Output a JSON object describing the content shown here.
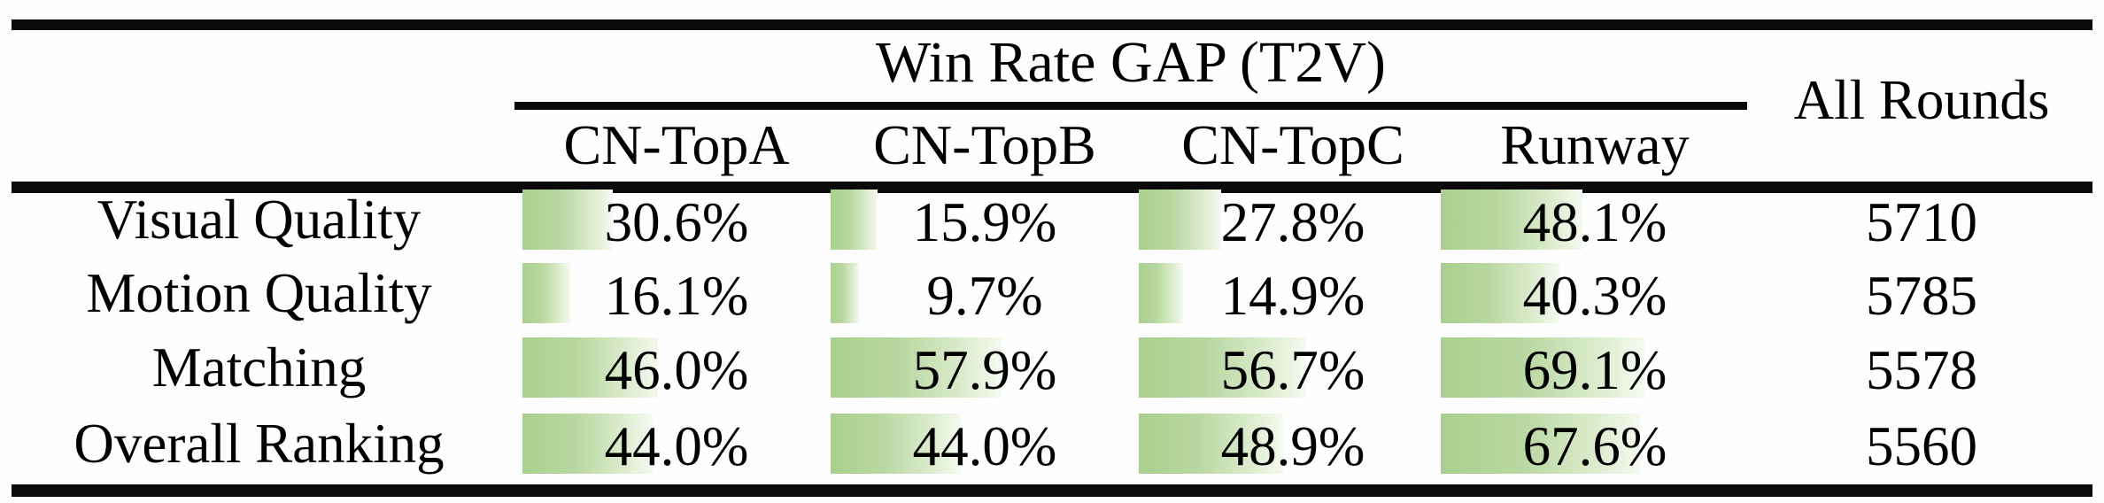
{
  "table": {
    "group_header": "Win Rate GAP (T2V)",
    "columns": [
      "CN-TopA",
      "CN-TopB",
      "CN-TopC",
      "Runway"
    ],
    "all_rounds_header": "All Rounds",
    "rows": [
      {
        "label": "Visual Quality",
        "values": [
          "30.6%",
          "15.9%",
          "27.8%",
          "48.1%"
        ],
        "percents": [
          30.6,
          15.9,
          27.8,
          48.1
        ],
        "all_rounds": "5710"
      },
      {
        "label": "Motion Quality",
        "values": [
          "16.1%",
          "9.7%",
          "14.9%",
          "40.3%"
        ],
        "percents": [
          16.1,
          9.7,
          14.9,
          40.3
        ],
        "all_rounds": "5785"
      },
      {
        "label": "Matching",
        "values": [
          "46.0%",
          "57.9%",
          "56.7%",
          "69.1%"
        ],
        "percents": [
          46.0,
          57.9,
          56.7,
          69.1
        ],
        "all_rounds": "5578"
      },
      {
        "label": "Overall Ranking",
        "values": [
          "44.0%",
          "44.0%",
          "48.9%",
          "67.6%"
        ],
        "percents": [
          44.0,
          44.0,
          48.9,
          67.6
        ],
        "all_rounds": "5560"
      }
    ],
    "colors": {
      "bar_green": "#a9d08e",
      "bar_fade": "#f5faf1",
      "rule_black": "#0a0a0a"
    }
  },
  "chart_data": {
    "type": "table",
    "title": "Win Rate GAP (T2V)",
    "row_categories": [
      "Visual Quality",
      "Motion Quality",
      "Matching",
      "Overall Ranking"
    ],
    "columns": [
      "CN-TopA",
      "CN-TopB",
      "CN-TopC",
      "Runway",
      "All Rounds"
    ],
    "series": [
      {
        "name": "CN-TopA",
        "values": [
          30.6,
          16.1,
          46.0,
          44.0
        ],
        "unit": "%"
      },
      {
        "name": "CN-TopB",
        "values": [
          15.9,
          9.7,
          57.9,
          44.0
        ],
        "unit": "%"
      },
      {
        "name": "CN-TopC",
        "values": [
          27.8,
          14.9,
          56.7,
          48.9
        ],
        "unit": "%"
      },
      {
        "name": "Runway",
        "values": [
          48.1,
          40.3,
          69.1,
          67.6
        ],
        "unit": "%"
      },
      {
        "name": "All Rounds",
        "values": [
          5710,
          5785,
          5578,
          5560
        ],
        "unit": "rounds"
      }
    ],
    "bar_style": "in-cell gradient data bars, length proportional to percent"
  }
}
